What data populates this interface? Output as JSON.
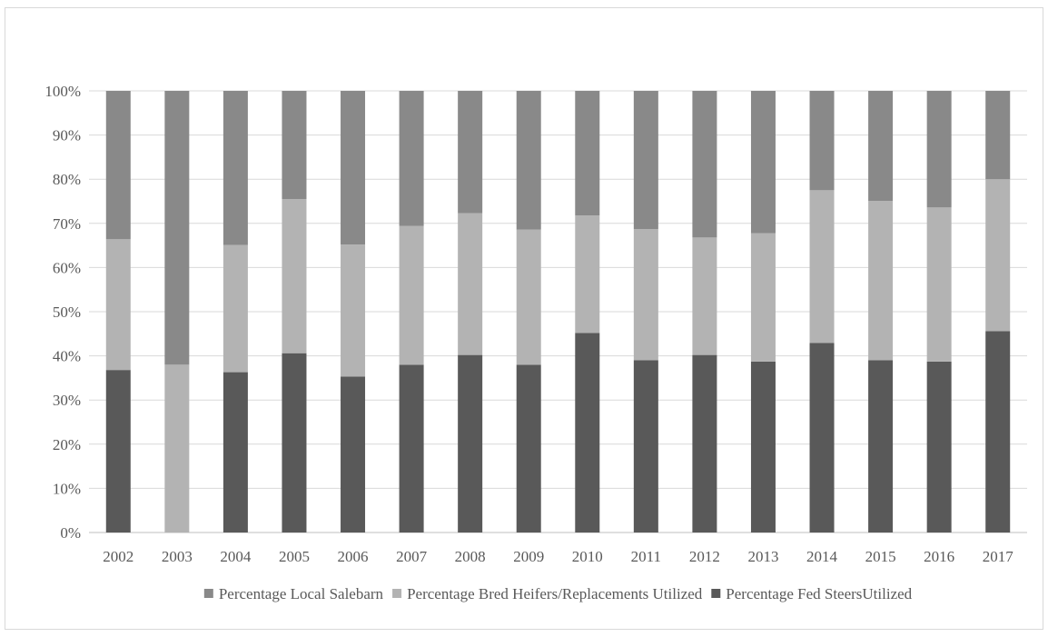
{
  "chart_data": {
    "type": "bar",
    "stacked": true,
    "categories": [
      "2002",
      "2003",
      "2004",
      "2005",
      "2006",
      "2007",
      "2008",
      "2009",
      "2010",
      "2011",
      "2012",
      "2013",
      "2014",
      "2015",
      "2016",
      "2017"
    ],
    "series": [
      {
        "name": "Percentage Fed SteersUtilized",
        "color": "#595959",
        "values": [
          36.8,
          0,
          36.3,
          40.6,
          35.3,
          38.0,
          40.2,
          38.0,
          45.2,
          39.0,
          40.2,
          38.7,
          42.9,
          39.0,
          38.7,
          45.6
        ]
      },
      {
        "name": "Percentage Bred Heifers/Replacements Utilized",
        "color": "#b3b3b3",
        "values": [
          29.6,
          38.0,
          28.8,
          34.9,
          29.9,
          31.4,
          32.1,
          30.6,
          26.6,
          29.7,
          26.6,
          29.1,
          34.6,
          36.1,
          34.9,
          34.4
        ]
      },
      {
        "name": "Percentage Local Salebarn",
        "color": "#898989",
        "values": [
          33.6,
          62.0,
          34.9,
          24.5,
          34.8,
          30.6,
          27.7,
          31.4,
          28.2,
          31.3,
          33.2,
          32.2,
          22.5,
          24.9,
          26.4,
          20.0
        ]
      }
    ],
    "yticks": [
      "0%",
      "10%",
      "20%",
      "30%",
      "40%",
      "50%",
      "60%",
      "70%",
      "80%",
      "90%",
      "100%"
    ],
    "ylim": [
      0,
      100
    ],
    "grid": true,
    "legend_position": "bottom",
    "legend_order": [
      "Percentage Local Salebarn",
      "Percentage Bred Heifers/Replacements Utilized",
      "Percentage Fed SteersUtilized"
    ]
  }
}
